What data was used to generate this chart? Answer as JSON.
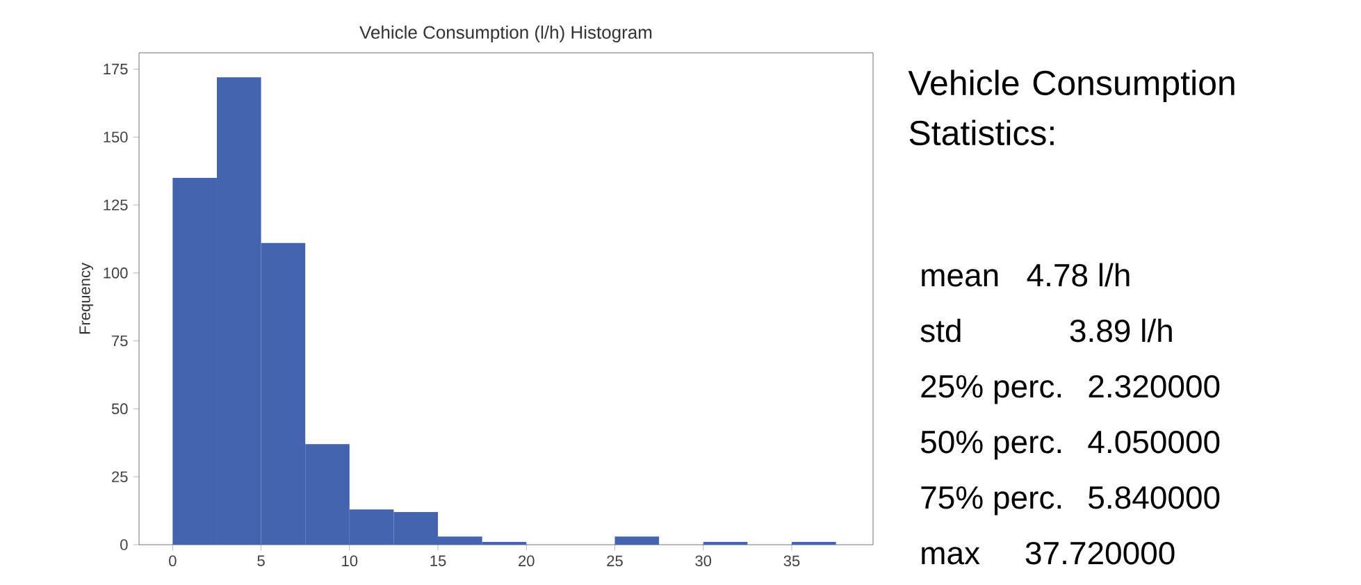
{
  "chart_data": {
    "type": "histogram",
    "title": "Vehicle Consumption (l/h) Histogram",
    "ylabel": "Frequency",
    "bins": [
      0,
      2.5,
      5,
      7.5,
      10,
      12.5,
      15,
      17.5,
      20,
      22.5,
      25,
      27.5,
      30,
      32.5,
      35,
      37.5
    ],
    "values": [
      135,
      172,
      111,
      37,
      13,
      12,
      3,
      1,
      0,
      0,
      3,
      0,
      1,
      0,
      1
    ],
    "color": "#4464b0",
    "xlim": [
      -1.9,
      39.6
    ],
    "ylim": [
      0,
      181
    ],
    "xticks": [
      0,
      5,
      10,
      15,
      20,
      25,
      30,
      35
    ],
    "yticks": [
      0,
      25,
      50,
      75,
      100,
      125,
      150,
      175
    ],
    "grid": false,
    "annotations": [
      "Vehicle Consumption Statistics:",
      "mean   4.78 l/h",
      "std            3.89 l/h",
      "25% perc.  2.320000",
      "50% perc.  4.050000",
      "75% perc.  5.840000",
      "max     37.720000"
    ]
  }
}
